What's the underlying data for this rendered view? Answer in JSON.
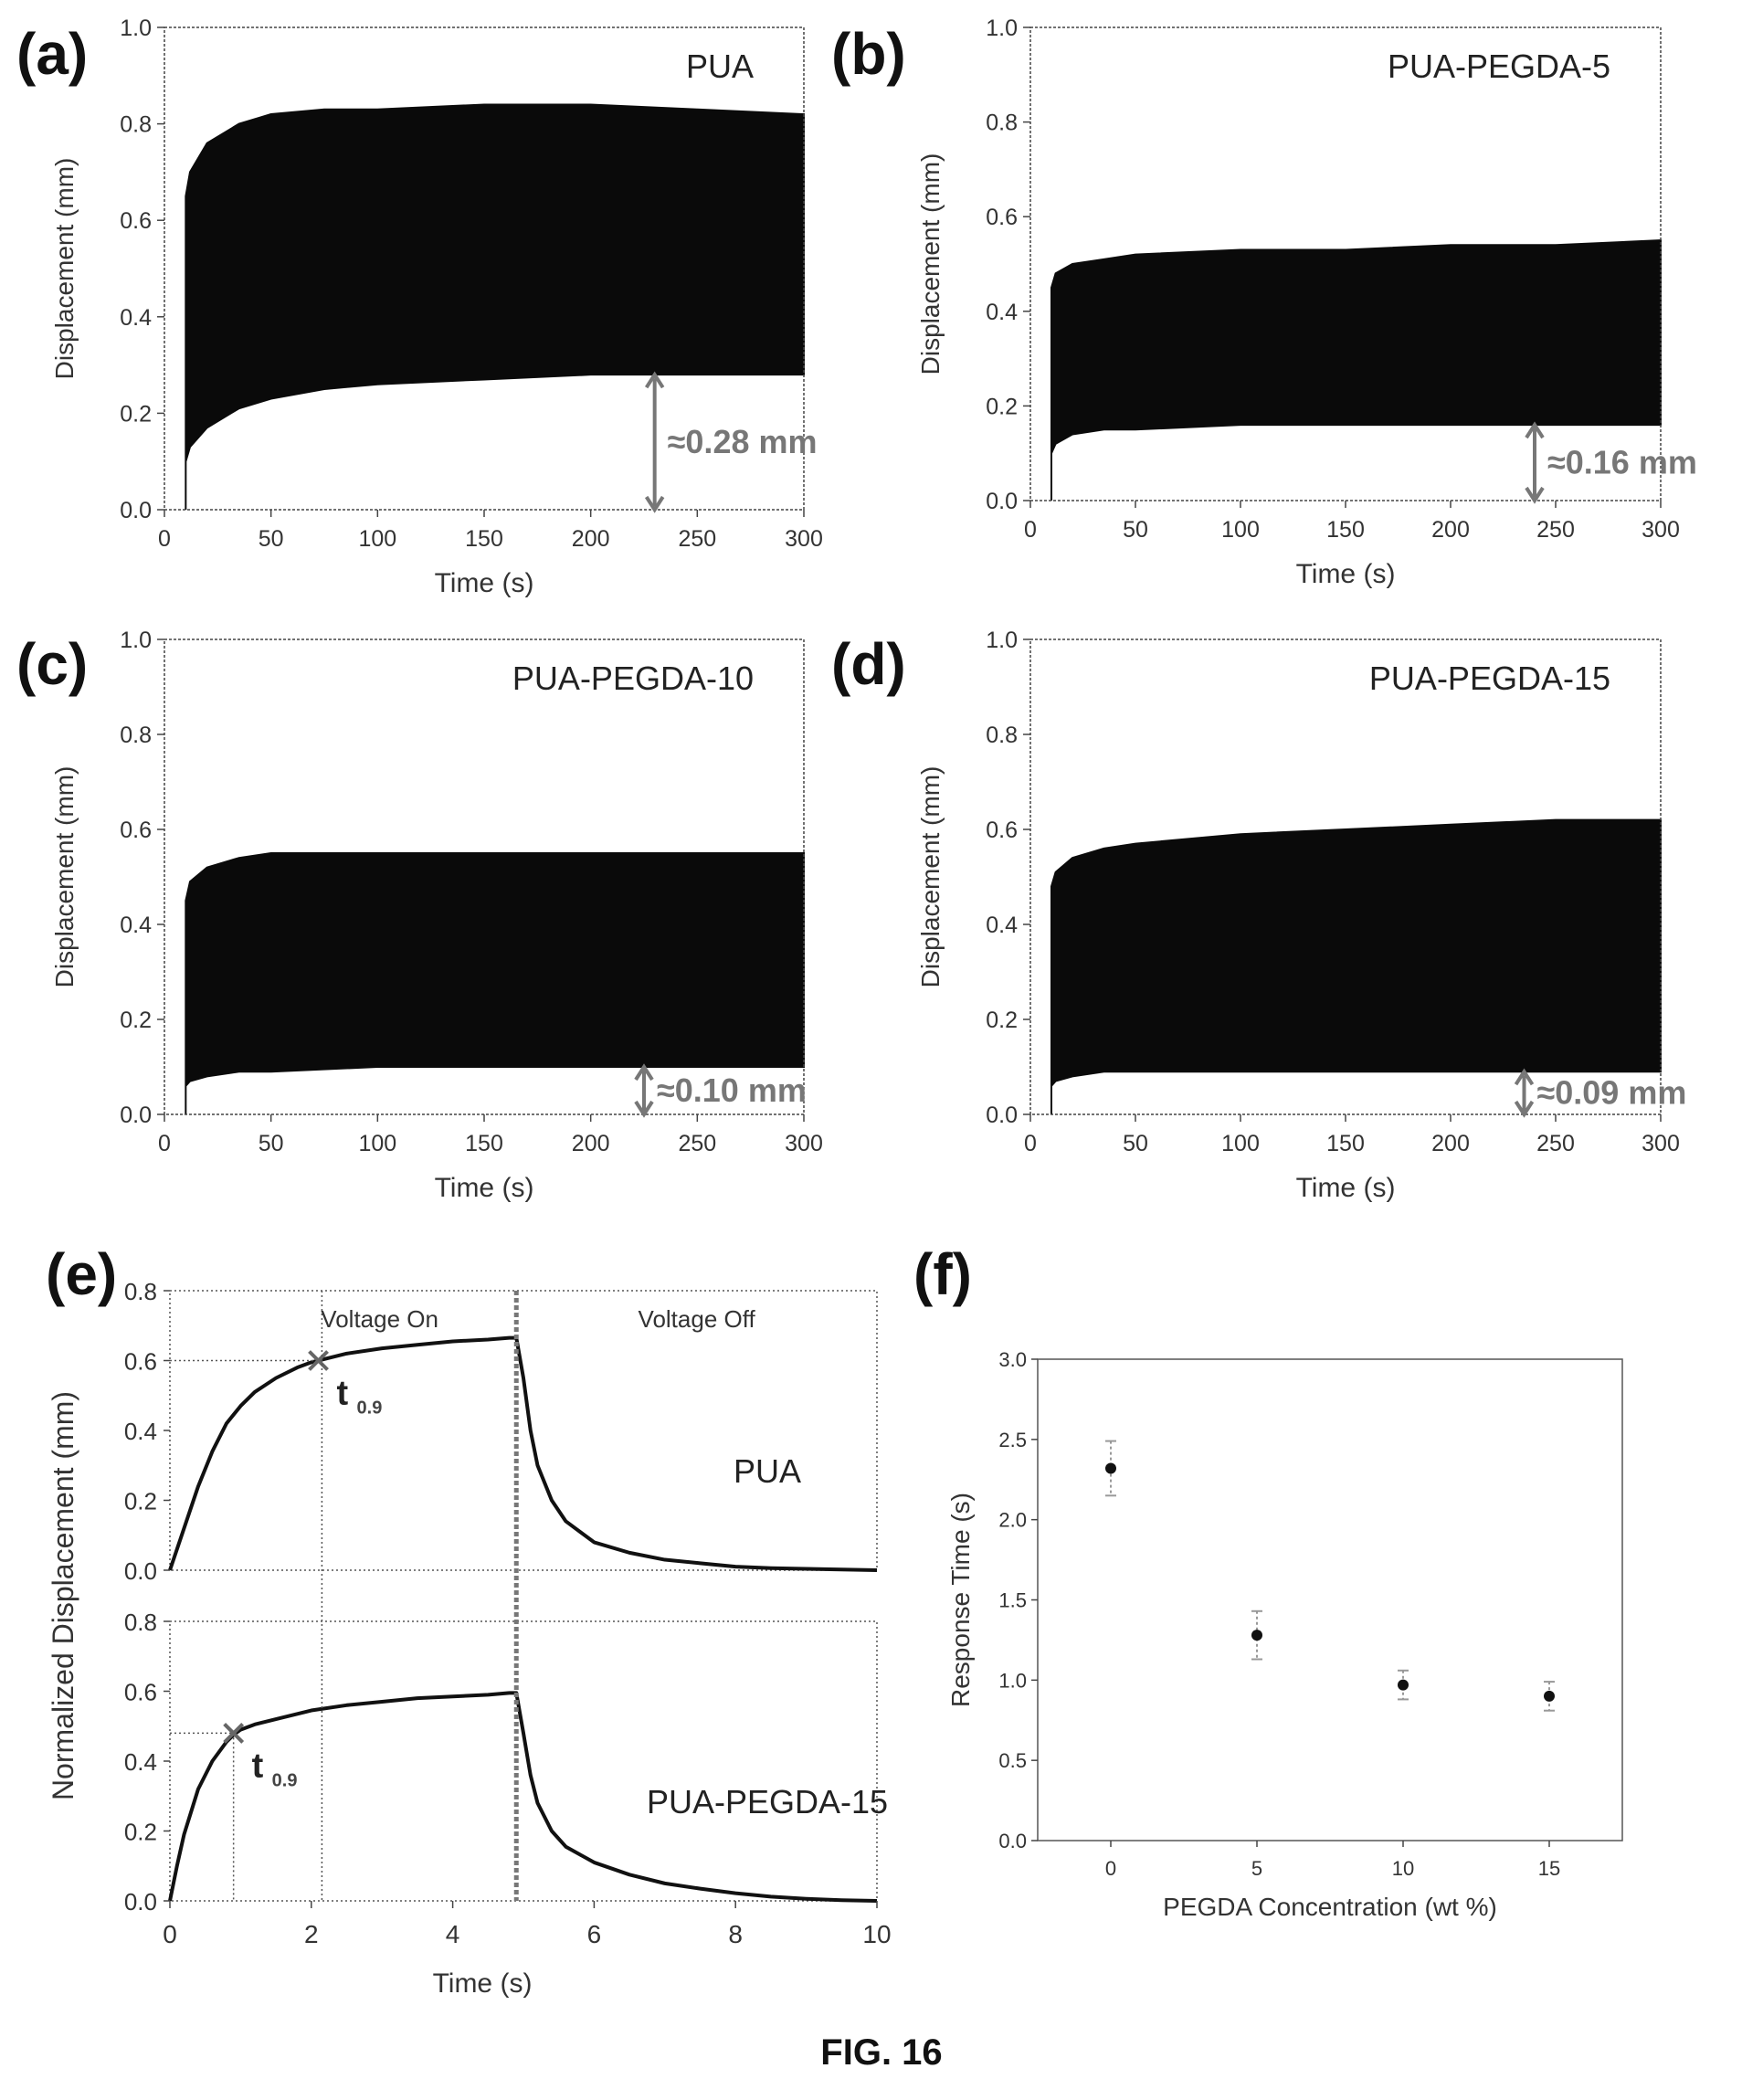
{
  "figure": {
    "caption": "FIG. 16",
    "panel_labels": [
      "(a)",
      "(b)",
      "(c)",
      "(d)",
      "(e)",
      "(f)"
    ]
  },
  "chart_data": [
    {
      "id": "a",
      "type": "area",
      "title": "PUA",
      "xlabel": "Time (s)",
      "ylabel": "Displacement (mm)",
      "xlim": [
        0,
        300
      ],
      "ylim": [
        0,
        1.0
      ],
      "xticks": [
        "0",
        "50",
        "100",
        "150",
        "200",
        "250",
        "300"
      ],
      "yticks": [
        "0.0",
        "0.2",
        "0.4",
        "0.6",
        "0.8",
        "1.0"
      ],
      "x": [
        10,
        12,
        20,
        35,
        50,
        75,
        100,
        150,
        200,
        250,
        300
      ],
      "upper": [
        0.65,
        0.7,
        0.76,
        0.8,
        0.82,
        0.83,
        0.83,
        0.84,
        0.84,
        0.83,
        0.82
      ],
      "lower": [
        0.1,
        0.13,
        0.17,
        0.21,
        0.23,
        0.25,
        0.26,
        0.27,
        0.28,
        0.28,
        0.28
      ],
      "annotation": "≈0.28 mm",
      "annotation_x": 230,
      "annotation_value": 0.28
    },
    {
      "id": "b",
      "type": "area",
      "title": "PUA-PEGDA-5",
      "xlabel": "Time (s)",
      "ylabel": "Displacement (mm)",
      "xlim": [
        0,
        300
      ],
      "ylim": [
        0,
        1.0
      ],
      "xticks": [
        "0",
        "50",
        "100",
        "150",
        "200",
        "250",
        "300"
      ],
      "yticks": [
        "0.0",
        "0.2",
        "0.4",
        "0.6",
        "0.8",
        "1.0"
      ],
      "x": [
        10,
        12,
        20,
        35,
        50,
        100,
        150,
        200,
        250,
        300
      ],
      "upper": [
        0.45,
        0.48,
        0.5,
        0.51,
        0.52,
        0.53,
        0.53,
        0.54,
        0.54,
        0.55
      ],
      "lower": [
        0.1,
        0.12,
        0.14,
        0.15,
        0.15,
        0.16,
        0.16,
        0.16,
        0.16,
        0.16
      ],
      "annotation": "≈0.16 mm",
      "annotation_x": 240,
      "annotation_value": 0.16
    },
    {
      "id": "c",
      "type": "area",
      "title": "PUA-PEGDA-10",
      "xlabel": "Time (s)",
      "ylabel": "Displacement (mm)",
      "xlim": [
        0,
        300
      ],
      "ylim": [
        0,
        1.0
      ],
      "xticks": [
        "0",
        "50",
        "100",
        "150",
        "200",
        "250",
        "300"
      ],
      "yticks": [
        "0.0",
        "0.2",
        "0.4",
        "0.6",
        "0.8",
        "1.0"
      ],
      "x": [
        10,
        12,
        20,
        35,
        50,
        100,
        150,
        200,
        250,
        300
      ],
      "upper": [
        0.45,
        0.49,
        0.52,
        0.54,
        0.55,
        0.55,
        0.55,
        0.55,
        0.55,
        0.55
      ],
      "lower": [
        0.06,
        0.07,
        0.08,
        0.09,
        0.09,
        0.1,
        0.1,
        0.1,
        0.1,
        0.1
      ],
      "annotation": "≈0.10 mm",
      "annotation_x": 225,
      "annotation_value": 0.1
    },
    {
      "id": "d",
      "type": "area",
      "title": "PUA-PEGDA-15",
      "xlabel": "Time (s)",
      "ylabel": "Displacement (mm)",
      "xlim": [
        0,
        300
      ],
      "ylim": [
        0,
        1.0
      ],
      "xticks": [
        "0",
        "50",
        "100",
        "150",
        "200",
        "250",
        "300"
      ],
      "yticks": [
        "0.0",
        "0.2",
        "0.4",
        "0.6",
        "0.8",
        "1.0"
      ],
      "x": [
        10,
        12,
        20,
        35,
        50,
        100,
        150,
        200,
        250,
        300
      ],
      "upper": [
        0.48,
        0.51,
        0.54,
        0.56,
        0.57,
        0.59,
        0.6,
        0.61,
        0.62,
        0.62
      ],
      "lower": [
        0.06,
        0.07,
        0.08,
        0.09,
        0.09,
        0.09,
        0.09,
        0.09,
        0.09,
        0.09
      ],
      "annotation": "≈0.09 mm",
      "annotation_x": 235,
      "annotation_value": 0.09
    },
    {
      "id": "e",
      "type": "line",
      "ylabel": "Normalized Displacement (mm)",
      "xlabel": "Time (s)",
      "xlim": [
        0,
        10
      ],
      "xticks": [
        "0",
        "2",
        "4",
        "6",
        "8",
        "10"
      ],
      "region_labels": [
        "Voltage On",
        "Voltage Off"
      ],
      "voltage_off_time": 4.9,
      "subplots": [
        {
          "series_label": "PUA",
          "ylim": [
            0,
            0.8
          ],
          "yticks": [
            "0.0",
            "0.2",
            "0.4",
            "0.6",
            "0.8"
          ],
          "x": [
            0,
            0.2,
            0.4,
            0.6,
            0.8,
            1.0,
            1.2,
            1.5,
            1.8,
            2.0,
            2.2,
            2.5,
            3.0,
            3.5,
            4.0,
            4.5,
            4.8,
            4.9,
            5.0,
            5.1,
            5.2,
            5.4,
            5.6,
            6.0,
            6.5,
            7.0,
            7.5,
            8.0,
            8.5,
            9.0,
            9.5,
            10.0
          ],
          "y": [
            0.0,
            0.12,
            0.24,
            0.34,
            0.42,
            0.47,
            0.51,
            0.55,
            0.58,
            0.595,
            0.605,
            0.62,
            0.635,
            0.645,
            0.655,
            0.66,
            0.665,
            0.665,
            0.55,
            0.4,
            0.3,
            0.2,
            0.14,
            0.08,
            0.05,
            0.03,
            0.02,
            0.01,
            0.006,
            0.004,
            0.002,
            0.0
          ],
          "marker_x": 2.1,
          "marker_y": 0.6,
          "marker_label": "t",
          "marker_sub": "0.9"
        },
        {
          "series_label": "PUA-PEGDA-15",
          "ylim": [
            0,
            0.8
          ],
          "yticks": [
            "0.0",
            "0.2",
            "0.4",
            "0.6",
            "0.8"
          ],
          "x": [
            0,
            0.1,
            0.2,
            0.4,
            0.6,
            0.8,
            0.9,
            1.0,
            1.2,
            1.5,
            2.0,
            2.5,
            3.0,
            3.5,
            4.0,
            4.5,
            4.8,
            4.9,
            5.0,
            5.1,
            5.2,
            5.4,
            5.6,
            6.0,
            6.5,
            7.0,
            7.5,
            8.0,
            8.5,
            9.0,
            9.5,
            10.0
          ],
          "y": [
            0.0,
            0.1,
            0.19,
            0.32,
            0.4,
            0.455,
            0.475,
            0.49,
            0.505,
            0.52,
            0.545,
            0.56,
            0.57,
            0.58,
            0.585,
            0.59,
            0.595,
            0.595,
            0.48,
            0.36,
            0.28,
            0.2,
            0.155,
            0.11,
            0.075,
            0.05,
            0.035,
            0.022,
            0.012,
            0.006,
            0.002,
            0.0
          ],
          "marker_x": 0.9,
          "marker_y": 0.48,
          "marker_label": "t",
          "marker_sub": "0.9"
        }
      ],
      "guide_x": 2.15
    },
    {
      "id": "f",
      "type": "scatter",
      "xlabel": "PEGDA Concentration (wt %)",
      "ylabel": "Response Time (s)",
      "xlim": [
        -2.5,
        17.5
      ],
      "ylim": [
        0,
        3.0
      ],
      "xticks": [
        "0",
        "5",
        "10",
        "15"
      ],
      "xtick_values": [
        0,
        5,
        10,
        15
      ],
      "yticks": [
        "0.0",
        "0.5",
        "1.0",
        "1.5",
        "2.0",
        "2.5",
        "3.0"
      ],
      "x": [
        0,
        5,
        10,
        15
      ],
      "y": [
        2.32,
        1.28,
        0.97,
        0.9
      ],
      "err": [
        0.17,
        0.15,
        0.09,
        0.09
      ]
    }
  ]
}
